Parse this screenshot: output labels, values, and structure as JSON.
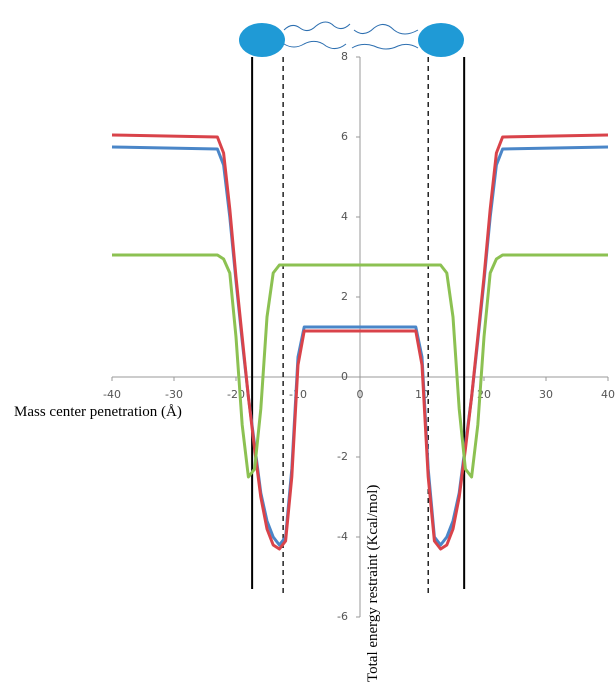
{
  "chart_data": {
    "type": "line",
    "x_label": "Mass center penetration (Å)",
    "y_label": "Total energy restraint (Kcal/mol)",
    "x": [
      -40,
      -23,
      -22,
      -21,
      -20,
      -19,
      -18,
      -17,
      -16,
      -15,
      -14,
      -13,
      -12,
      -11,
      -10,
      -9,
      9,
      10,
      11,
      12,
      13,
      14,
      15,
      16,
      17,
      18,
      19,
      20,
      21,
      22,
      23,
      40
    ],
    "series": [
      {
        "color": "#4a86c8",
        "values": [
          5.75,
          5.7,
          5.3,
          4.0,
          2.4,
          0.9,
          -0.5,
          -1.7,
          -2.9,
          -3.6,
          -4.0,
          -4.2,
          -4.0,
          -2.3,
          0.5,
          1.25,
          1.25,
          0.5,
          -2.3,
          -4.0,
          -4.2,
          -4.0,
          -3.6,
          -2.9,
          -1.7,
          -0.5,
          0.9,
          2.4,
          4.0,
          5.3,
          5.7,
          5.75
        ]
      },
      {
        "color": "#d9434a",
        "values": [
          6.05,
          6.0,
          5.6,
          4.2,
          2.5,
          1.0,
          -0.5,
          -1.8,
          -3.0,
          -3.8,
          -4.2,
          -4.3,
          -4.1,
          -2.5,
          0.3,
          1.15,
          1.15,
          0.3,
          -2.5,
          -4.1,
          -4.3,
          -4.2,
          -3.8,
          -3.0,
          -1.8,
          -0.5,
          1.0,
          2.5,
          4.2,
          5.6,
          6.0,
          6.05
        ]
      },
      {
        "color": "#8cc152",
        "values": [
          3.05,
          3.05,
          2.95,
          2.6,
          1.0,
          -1.2,
          -2.5,
          -2.3,
          -0.8,
          1.5,
          2.6,
          2.8,
          2.8,
          2.8,
          2.8,
          2.8,
          2.8,
          2.8,
          2.8,
          2.8,
          2.8,
          2.6,
          1.5,
          -0.8,
          -2.3,
          -2.5,
          -1.2,
          1.0,
          2.6,
          2.95,
          3.05,
          3.05
        ]
      }
    ],
    "xlim": [
      -40,
      40
    ],
    "xticks": [
      -40,
      -30,
      -20,
      -10,
      0,
      10,
      20,
      30,
      40
    ],
    "ylim": [
      -6,
      8
    ],
    "yticks": [
      -6,
      -4,
      -2,
      0,
      2,
      4,
      6,
      8
    ],
    "vlines": [
      {
        "x": -17.4,
        "ymin": -5.3,
        "ymax": 8,
        "style": "solid"
      },
      {
        "x": 16.8,
        "ymin": -5.3,
        "ymax": 8,
        "style": "solid"
      },
      {
        "x": -12.4,
        "ymin": -5.4,
        "ymax": 8,
        "style": "dashed"
      },
      {
        "x": 11,
        "ymin": -5.4,
        "ymax": 8,
        "style": "dashed"
      }
    ]
  }
}
